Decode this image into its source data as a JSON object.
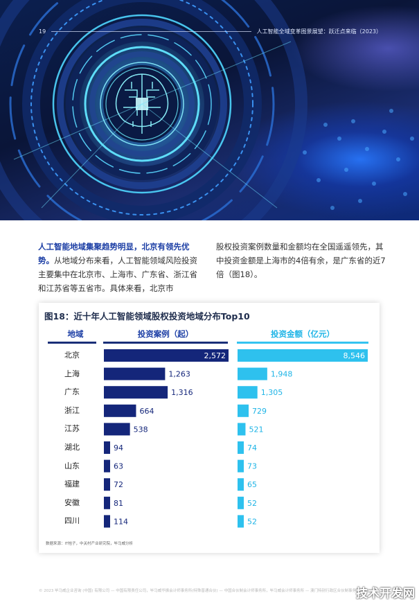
{
  "header": {
    "page_number": "19",
    "report_title": "人工智能全域变革图景展望：跃迁点来临（2023）"
  },
  "body": {
    "left_highlight": "人工智能地域集聚趋势明显，北京有领先优势。",
    "left_text": "从地域分布来看，人工智能领域风险投资主要集中在北京市、上海市、广东省、浙江省和江苏省等五省市。具体来看，北京市",
    "right_text": "股权投资案例数量和金额均在全国遥遥领先，其中投资金额是上海市的4倍有余，是广东省的近7倍（图18）。"
  },
  "chart_data": {
    "type": "bar",
    "title": "图18：近十年人工智能领域股权投资地域分布Top10",
    "column_headers": {
      "region": "地域",
      "cases": "投资案例（起）",
      "amount": "投资金额（亿元）"
    },
    "categories": [
      "北京",
      "上海",
      "广东",
      "浙江",
      "江苏",
      "湖北",
      "山东",
      "福建",
      "安徽",
      "四川"
    ],
    "series": [
      {
        "name": "投资案例（起）",
        "values": [
          2572,
          1263,
          1316,
          664,
          538,
          94,
          63,
          72,
          81,
          114
        ],
        "labels": [
          "2,572",
          "1,263",
          "1,316",
          "664",
          "538",
          "94",
          "63",
          "72",
          "81",
          "114"
        ],
        "color": "#14267a"
      },
      {
        "name": "投资金额（亿元）",
        "values": [
          8546,
          1948,
          1305,
          729,
          521,
          74,
          73,
          65,
          52,
          52
        ],
        "labels": [
          "8,546",
          "1,948",
          "1,305",
          "729",
          "521",
          "74",
          "73",
          "65",
          "52",
          "52"
        ],
        "color": "#2ec1ee"
      }
    ],
    "source": "数据来源：IT桔子，中关村产业研究院，毕马威分析"
  },
  "footer": {
    "text": "© 2023 毕马威企业咨询 (中国) 有限公司 — 中国有限责任公司，毕马威华振会计师事务所(特殊普通合伙) — 中国合伙制会计师事务所，毕马威会计师事务所 — 澳门特别行政区合伙制事务所，及毕马威会计师事务所 — 香港合伙制事务所，均是与毕马威国际有限公司相关联的独立成员所全球性组织中的成员。版权所有，不得转载。",
    "watermark": "技术开发网"
  },
  "colors": {
    "cases_bar": "#14267a",
    "amount_bar": "#2ec1ee",
    "heading_blue": "#1d3fa5"
  }
}
